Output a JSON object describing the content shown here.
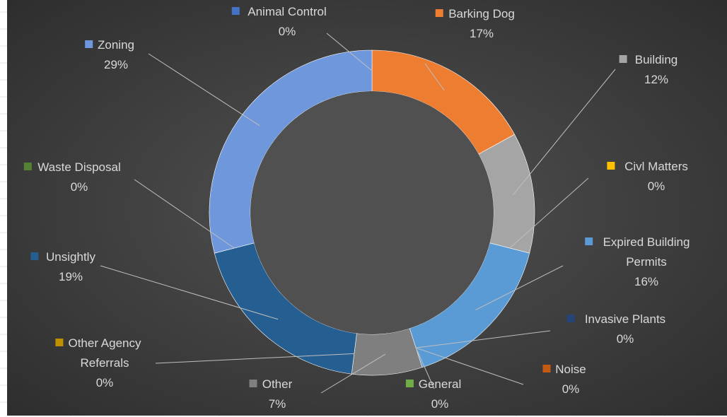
{
  "chart_data": {
    "type": "pie",
    "variant": "doughnut",
    "title": "",
    "legend": "none",
    "data_labels": "category-and-percent",
    "background_color": "#404040",
    "slices": [
      {
        "category": "Animal Control",
        "label_lines": [
          "Animal Control"
        ],
        "percent": 0,
        "label": "0%",
        "color": "#4472c4"
      },
      {
        "category": "Barking Dog",
        "label_lines": [
          "Barking Dog"
        ],
        "percent": 17,
        "label": "17%",
        "color": "#ed7d31"
      },
      {
        "category": "Building",
        "label_lines": [
          "Building"
        ],
        "percent": 12,
        "label": "12%",
        "color": "#a5a5a5"
      },
      {
        "category": "Civl Matters",
        "label_lines": [
          "Civl Matters"
        ],
        "percent": 0,
        "label": "0%",
        "color": "#ffc000"
      },
      {
        "category": "Expired Building Permits",
        "label_lines": [
          "Expired Building",
          "Permits"
        ],
        "percent": 16,
        "label": "16%",
        "color": "#5b9bd5"
      },
      {
        "category": "Invasive Plants",
        "label_lines": [
          "Invasive Plants"
        ],
        "percent": 0,
        "label": "0%",
        "color": "#264478"
      },
      {
        "category": "Noise",
        "label_lines": [
          "Noise"
        ],
        "percent": 0,
        "label": "0%",
        "color": "#c55a11"
      },
      {
        "category": "General",
        "label_lines": [
          "General"
        ],
        "percent": 0,
        "label": "0%",
        "color": "#70ad47"
      },
      {
        "category": "Other",
        "label_lines": [
          "Other"
        ],
        "percent": 7,
        "label": "7%",
        "color": "#7f7f7f"
      },
      {
        "category": "Other Agency Referrals",
        "label_lines": [
          "Other Agency",
          "Referrals"
        ],
        "percent": 0,
        "label": "0%",
        "color": "#bf9000"
      },
      {
        "category": "Unsightly",
        "label_lines": [
          "Unsightly"
        ],
        "percent": 19,
        "label": "19%",
        "color": "#255e91"
      },
      {
        "category": "Waste Disposal",
        "label_lines": [
          "Waste Disposal"
        ],
        "percent": 0,
        "label": "0%",
        "color": "#548235"
      },
      {
        "category": "Zoning",
        "label_lines": [
          "Zoning"
        ],
        "percent": 29,
        "label": "29%",
        "color": "#6f97dc"
      }
    ]
  }
}
